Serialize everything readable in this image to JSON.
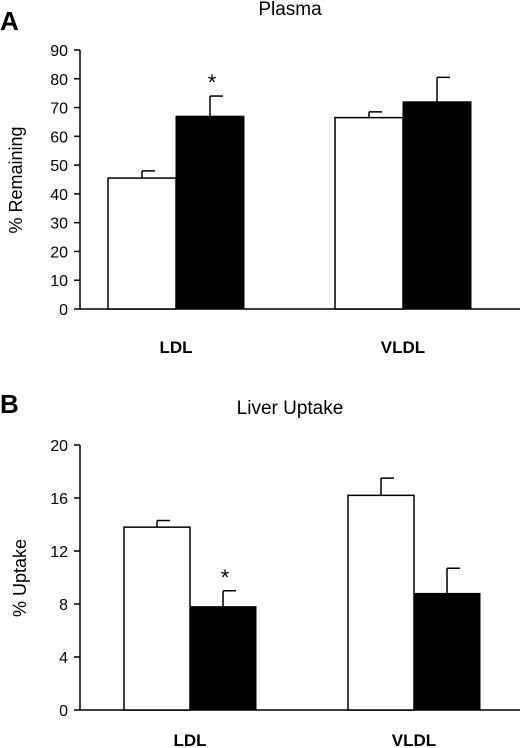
{
  "chart_data": [
    {
      "panel": "A",
      "type": "bar",
      "title": "Plasma",
      "ylabel": "% Remaining",
      "xlabel": "",
      "categories": [
        "LDL",
        "VLDL"
      ],
      "ylim": [
        0,
        90
      ],
      "yticks": [
        0,
        10,
        20,
        30,
        40,
        50,
        60,
        70,
        80,
        90
      ],
      "series": [
        {
          "values": [
            45.5,
            66.5
          ],
          "errors": [
            2.5,
            2.0
          ],
          "color": "#ffffff"
        },
        {
          "values": [
            67.0,
            72.0
          ],
          "errors": [
            7.0,
            8.5
          ],
          "color": "#000000"
        }
      ],
      "annotations": [
        {
          "category": "LDL",
          "series": 1,
          "text": "*"
        }
      ],
      "grid": false
    },
    {
      "panel": "B",
      "type": "bar",
      "title": "Liver Uptake",
      "ylabel": "% Uptake",
      "xlabel": "",
      "categories": [
        "LDL",
        "VLDL"
      ],
      "ylim": [
        0,
        20
      ],
      "yticks": [
        0,
        4,
        8,
        12,
        16,
        20
      ],
      "series": [
        {
          "values": [
            13.8,
            16.2
          ],
          "errors": [
            0.5,
            1.3
          ],
          "color": "#ffffff"
        },
        {
          "values": [
            7.8,
            8.8
          ],
          "errors": [
            1.2,
            1.9
          ],
          "color": "#000000"
        }
      ],
      "annotations": [
        {
          "category": "LDL",
          "series": 1,
          "text": "*"
        }
      ],
      "grid": false
    }
  ]
}
